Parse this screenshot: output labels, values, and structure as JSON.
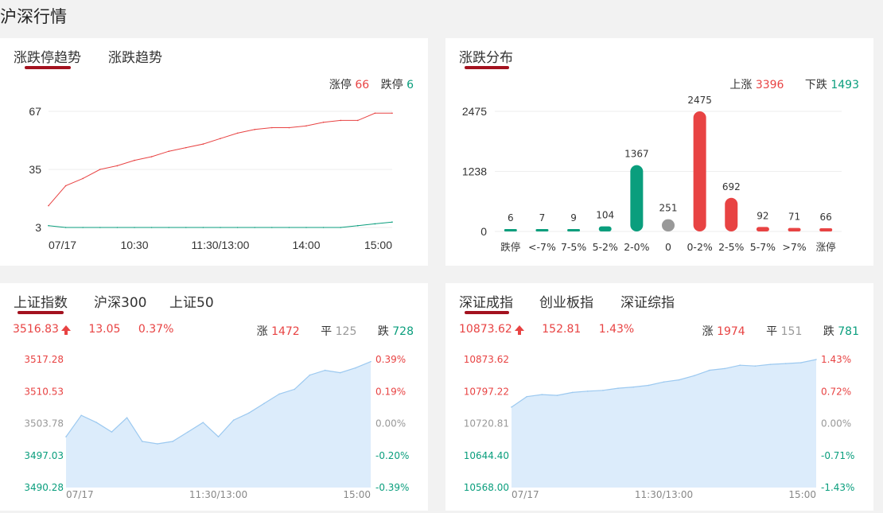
{
  "page_title": "沪深行情",
  "colors": {
    "up": "#e84343",
    "down": "#0a9e7d",
    "flat": "#999999",
    "accent": "#a3121f",
    "area_fill": "#dcecfb",
    "area_line": "#9cc9f0"
  },
  "panel1": {
    "tabs": [
      "涨跌停趋势",
      "涨跌趋势"
    ],
    "limit_up_label": "涨停",
    "limit_up_value": "66",
    "limit_down_label": "跌停",
    "limit_down_value": "6"
  },
  "panel2": {
    "tabs": [
      "涨跌分布"
    ],
    "rise_label": "上涨",
    "rise_value": "3396",
    "fall_label": "下跌",
    "fall_value": "1493"
  },
  "panel3": {
    "tabs": [
      "上证指数",
      "沪深300",
      "上证50"
    ],
    "index_value": "3516.83",
    "change": "13.05",
    "change_pct": "0.37%",
    "up_label": "涨",
    "up_count": "1472",
    "flat_label": "平",
    "flat_count": "125",
    "down_label": "跌",
    "down_count": "728"
  },
  "panel4": {
    "tabs": [
      "深证成指",
      "创业板指",
      "深证综指"
    ],
    "index_value": "10873.62",
    "change": "152.81",
    "change_pct": "1.43%",
    "up_label": "涨",
    "up_count": "1974",
    "flat_label": "平",
    "flat_count": "151",
    "down_label": "跌",
    "down_count": "781"
  },
  "chart_data": [
    {
      "type": "line",
      "x_ticks": [
        "07/17",
        "10:30",
        "11:30/13:00",
        "14:00",
        "15:00"
      ],
      "y_ticks": [
        "67",
        "35",
        "3"
      ],
      "ylim": [
        3,
        67
      ],
      "x": [
        0,
        0.05,
        0.1,
        0.15,
        0.2,
        0.25,
        0.3,
        0.35,
        0.4,
        0.45,
        0.5,
        0.55,
        0.6,
        0.65,
        0.7,
        0.75,
        0.8,
        0.85,
        0.9,
        0.95,
        1.0
      ],
      "series": [
        {
          "color": "#e84343",
          "values": [
            15,
            26,
            30,
            35,
            37,
            40,
            42,
            45,
            47,
            49,
            52,
            55,
            57,
            58,
            58,
            59,
            61,
            62,
            62,
            66,
            66
          ]
        },
        {
          "color": "#0a9e7d",
          "values": [
            4,
            3,
            3,
            3,
            3,
            3,
            3,
            3,
            3,
            3,
            3,
            3,
            3,
            3,
            3,
            3,
            3,
            3,
            4,
            5,
            6
          ]
        }
      ]
    },
    {
      "type": "bar",
      "y_ticks": [
        "2475",
        "1238",
        "0"
      ],
      "ylim": [
        0,
        2475
      ],
      "categories": [
        "跌停",
        "<-7%",
        "7-5%",
        "5-2%",
        "2-0%",
        "0",
        "0-2%",
        "2-5%",
        "5-7%",
        ">7%",
        "涨停"
      ],
      "values": [
        6,
        7,
        9,
        104,
        1367,
        251,
        2475,
        692,
        92,
        71,
        66
      ],
      "value_labels": [
        "6",
        "7",
        "9",
        "104",
        "1367",
        "251",
        "2475",
        "692",
        "92",
        "71",
        "66"
      ],
      "colors": [
        "#0a9e7d",
        "#0a9e7d",
        "#0a9e7d",
        "#0a9e7d",
        "#0a9e7d",
        "#999999",
        "#e84343",
        "#e84343",
        "#e84343",
        "#e84343",
        "#e84343"
      ]
    },
    {
      "type": "area",
      "x_ticks": [
        "07/17",
        "11:30/13:00",
        "15:00"
      ],
      "y_ticks_left": [
        "3517.28",
        "3510.53",
        "3503.78",
        "3497.03",
        "3490.28"
      ],
      "y_ticks_right": [
        "0.39%",
        "0.19%",
        "0.00%",
        "-0.20%",
        "-0.39%"
      ],
      "ylim": [
        3490.28,
        3517.28
      ],
      "x": [
        0,
        0.05,
        0.1,
        0.15,
        0.2,
        0.25,
        0.3,
        0.35,
        0.4,
        0.45,
        0.5,
        0.55,
        0.6,
        0.65,
        0.7,
        0.75,
        0.8,
        0.85,
        0.9,
        0.95,
        1.0
      ],
      "values": [
        3501,
        3505.5,
        3504,
        3502,
        3505,
        3500,
        3499.5,
        3500,
        3502,
        3504,
        3501,
        3504.5,
        3506,
        3508,
        3510,
        3511,
        3514,
        3515,
        3514.5,
        3515.5,
        3516.83
      ]
    },
    {
      "type": "area",
      "x_ticks": [
        "07/17",
        "11:30/13:00",
        "15:00"
      ],
      "y_ticks_left": [
        "10873.62",
        "10797.22",
        "10720.81",
        "10644.40",
        "10568.00"
      ],
      "y_ticks_right": [
        "1.43%",
        "0.72%",
        "0.00%",
        "-0.71%",
        "-1.43%"
      ],
      "ylim": [
        10568.0,
        10873.62
      ],
      "x": [
        0,
        0.05,
        0.1,
        0.15,
        0.2,
        0.25,
        0.3,
        0.35,
        0.4,
        0.45,
        0.5,
        0.55,
        0.6,
        0.65,
        0.7,
        0.75,
        0.8,
        0.85,
        0.9,
        0.95,
        1.0
      ],
      "values": [
        10760,
        10785,
        10790,
        10788,
        10795,
        10798,
        10800,
        10805,
        10808,
        10812,
        10820,
        10825,
        10835,
        10848,
        10852,
        10860,
        10858,
        10862,
        10864,
        10866,
        10873.62
      ]
    }
  ]
}
